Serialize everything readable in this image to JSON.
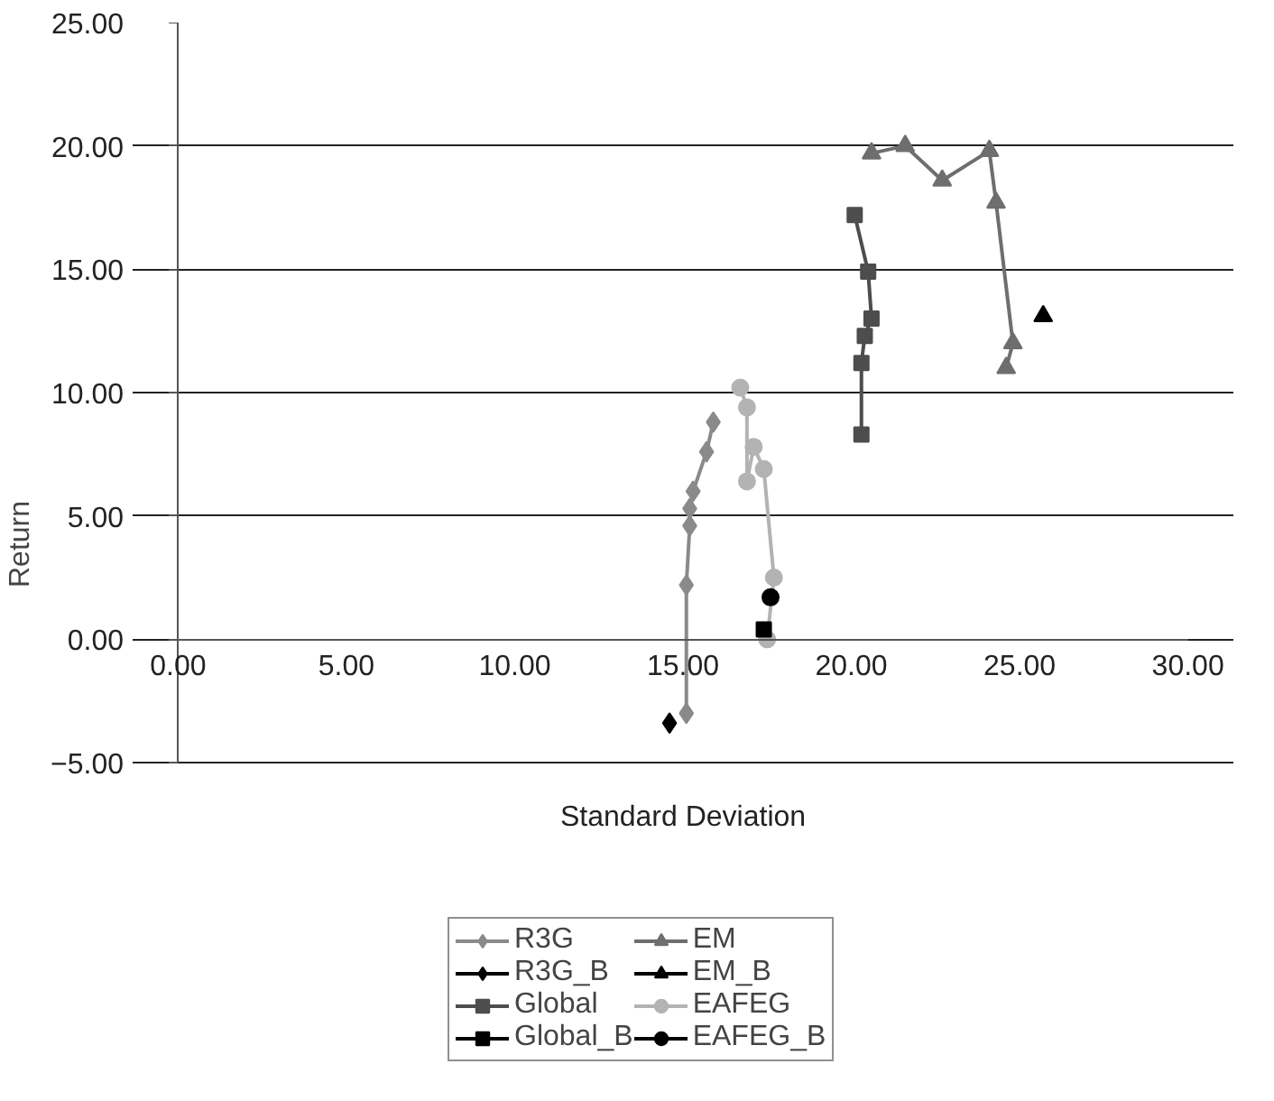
{
  "chart_data": {
    "type": "line",
    "xlabel": "Standard Deviation",
    "ylabel": "Return",
    "xlim": [
      0,
      30
    ],
    "ylim": [
      -5,
      25
    ],
    "xticks": [
      {
        "value": 0,
        "label": "0.00"
      },
      {
        "value": 5,
        "label": "5.00"
      },
      {
        "value": 10,
        "label": "10.00"
      },
      {
        "value": 15,
        "label": "15.00"
      },
      {
        "value": 20,
        "label": "20.00"
      },
      {
        "value": 25,
        "label": "25.00"
      },
      {
        "value": 30,
        "label": "30.00"
      }
    ],
    "yticks": [
      {
        "value": -5,
        "label": "−5.00"
      },
      {
        "value": 0,
        "label": "0.00"
      },
      {
        "value": 5,
        "label": "5.00"
      },
      {
        "value": 10,
        "label": "10.00"
      },
      {
        "value": 15,
        "label": "15.00"
      },
      {
        "value": 20,
        "label": "20.00"
      },
      {
        "value": 25,
        "label": "25.00"
      }
    ],
    "grid": "y",
    "legend": "bottom",
    "series": [
      {
        "name": "R3G",
        "color": "#8a8a8a",
        "marker": "diamond",
        "x": [
          15.1,
          15.1,
          15.2,
          15.2,
          15.3,
          15.7,
          15.9
        ],
        "values": [
          -3.0,
          2.2,
          4.6,
          5.3,
          6.0,
          7.6,
          8.8
        ]
      },
      {
        "name": "Global",
        "color": "#4d4d4d",
        "marker": "square",
        "x": [
          20.1,
          20.5,
          20.6,
          20.4,
          20.3,
          20.3
        ],
        "values": [
          17.2,
          14.9,
          13.0,
          12.3,
          11.2,
          8.3
        ]
      },
      {
        "name": "EM",
        "color": "#6e6e6e",
        "marker": "triangle",
        "x": [
          20.6,
          21.6,
          22.7,
          24.1,
          24.3,
          24.8,
          24.6
        ],
        "values": [
          19.7,
          20.0,
          18.6,
          19.8,
          17.7,
          12.0,
          11.0
        ]
      },
      {
        "name": "EAFEG",
        "color": "#b3b3b3",
        "marker": "circle",
        "x": [
          16.7,
          16.9,
          16.9,
          17.1,
          17.4,
          17.7,
          17.5
        ],
        "values": [
          10.2,
          9.4,
          6.4,
          7.8,
          6.9,
          2.5,
          0.0
        ]
      },
      {
        "name": "R3G_B",
        "color": "#000000",
        "marker": "diamond",
        "x": [
          14.6
        ],
        "values": [
          -3.4
        ]
      },
      {
        "name": "Global_B",
        "color": "#000000",
        "marker": "square",
        "x": [
          17.4
        ],
        "values": [
          0.4
        ]
      },
      {
        "name": "EM_B",
        "color": "#000000",
        "marker": "triangle",
        "x": [
          25.7
        ],
        "values": [
          13.1
        ]
      },
      {
        "name": "EAFEG_B",
        "color": "#000000",
        "marker": "circle",
        "x": [
          17.6
        ],
        "values": [
          1.7
        ]
      }
    ]
  }
}
